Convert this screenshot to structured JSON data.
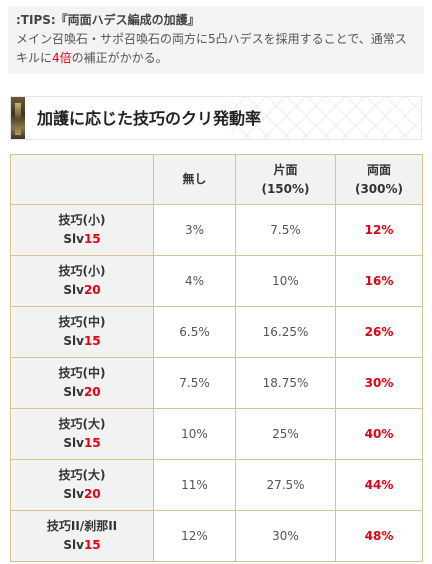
{
  "tips": {
    "title": ":TIPS:『両面ハデス編成の加護』",
    "body_prefix": "メイン召喚石・サポ召喚石の両方に5凸ハデスを採用することで、通常スキルに",
    "highlight": "4倍",
    "body_suffix": "の補正がかかる。"
  },
  "section_heading": "加護に応じた技巧のクリ発動率",
  "table": {
    "headers": [
      {
        "line1": "",
        "line2": ""
      },
      {
        "line1": "無し",
        "line2": ""
      },
      {
        "line1": "片面",
        "line2": "(150%)"
      },
      {
        "line1": "両面",
        "line2": "(300%)"
      }
    ],
    "rows": [
      {
        "skill": "技巧(小)",
        "slv_prefix": "Slv",
        "slv": "15",
        "none": "3%",
        "one": "7.5%",
        "both": "12%"
      },
      {
        "skill": "技巧(小)",
        "slv_prefix": "Slv",
        "slv": "20",
        "none": "4%",
        "one": "10%",
        "both": "16%"
      },
      {
        "skill": "技巧(中)",
        "slv_prefix": "Slv",
        "slv": "15",
        "none": "6.5%",
        "one": "16.25%",
        "both": "26%"
      },
      {
        "skill": "技巧(中)",
        "slv_prefix": "Slv",
        "slv": "20",
        "none": "7.5%",
        "one": "18.75%",
        "both": "30%"
      },
      {
        "skill": "技巧(大)",
        "slv_prefix": "Slv",
        "slv": "15",
        "none": "10%",
        "one": "25%",
        "both": "40%"
      },
      {
        "skill": "技巧(大)",
        "slv_prefix": "Slv",
        "slv": "20",
        "none": "11%",
        "one": "27.5%",
        "both": "44%"
      },
      {
        "skill": "技巧II/刹那II",
        "slv_prefix": "Slv",
        "slv": "15",
        "none": "12%",
        "one": "30%",
        "both": "48%"
      }
    ]
  },
  "colors": {
    "accent_red": "#e60012",
    "border_gold": "#d8c48a",
    "header_bg": "#f2f2f2"
  }
}
